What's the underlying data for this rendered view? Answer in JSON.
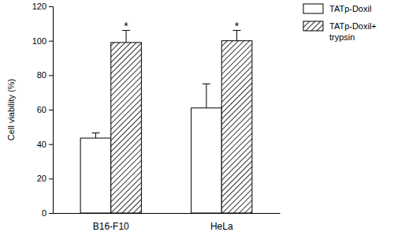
{
  "chart_data": {
    "type": "bar",
    "y_label": "Cell viability (%)",
    "categories": [
      "B16-F10",
      "HeLa"
    ],
    "series": [
      {
        "name": "TATp-Doxil",
        "color": "#ffffff",
        "values": [
          43.5,
          61
        ],
        "errors": [
          3,
          14
        ]
      },
      {
        "name": "TATp-Doxil+ trypsin",
        "color": "#000000",
        "values": [
          99,
          100
        ],
        "errors": [
          7,
          6
        ]
      }
    ],
    "annotations": [
      {
        "text": "*",
        "category": 0,
        "series": 1
      },
      {
        "text": "*",
        "category": 1,
        "series": 1
      }
    ],
    "ylim": [
      0,
      120
    ],
    "yticks": [
      0,
      20,
      40,
      60,
      80,
      100,
      120
    ],
    "grid": false,
    "legend": "upper right"
  }
}
